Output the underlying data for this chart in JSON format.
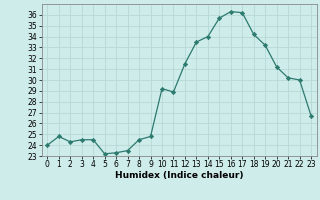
{
  "x": [
    0,
    1,
    2,
    3,
    4,
    5,
    6,
    7,
    8,
    9,
    10,
    11,
    12,
    13,
    14,
    15,
    16,
    17,
    18,
    19,
    20,
    21,
    22,
    23
  ],
  "y": [
    24.0,
    24.8,
    24.3,
    24.5,
    24.5,
    23.2,
    23.3,
    23.5,
    24.5,
    24.8,
    29.2,
    28.9,
    31.5,
    33.5,
    34.0,
    35.7,
    36.3,
    36.2,
    34.2,
    33.2,
    31.2,
    30.2,
    30.0,
    26.7
  ],
  "line_color": "#2d7a6e",
  "marker": "D",
  "marker_size": 2.2,
  "bg_color": "#ceecea",
  "grid_color": "#b8d8d5",
  "xlabel": "Humidex (Indice chaleur)",
  "xlim": [
    -0.5,
    23.5
  ],
  "ylim": [
    23,
    37
  ],
  "yticks": [
    23,
    24,
    25,
    26,
    27,
    28,
    29,
    30,
    31,
    32,
    33,
    34,
    35,
    36
  ],
  "xticks": [
    0,
    1,
    2,
    3,
    4,
    5,
    6,
    7,
    8,
    9,
    10,
    11,
    12,
    13,
    14,
    15,
    16,
    17,
    18,
    19,
    20,
    21,
    22,
    23
  ],
  "tick_fontsize": 5.5,
  "label_fontsize": 6.5
}
